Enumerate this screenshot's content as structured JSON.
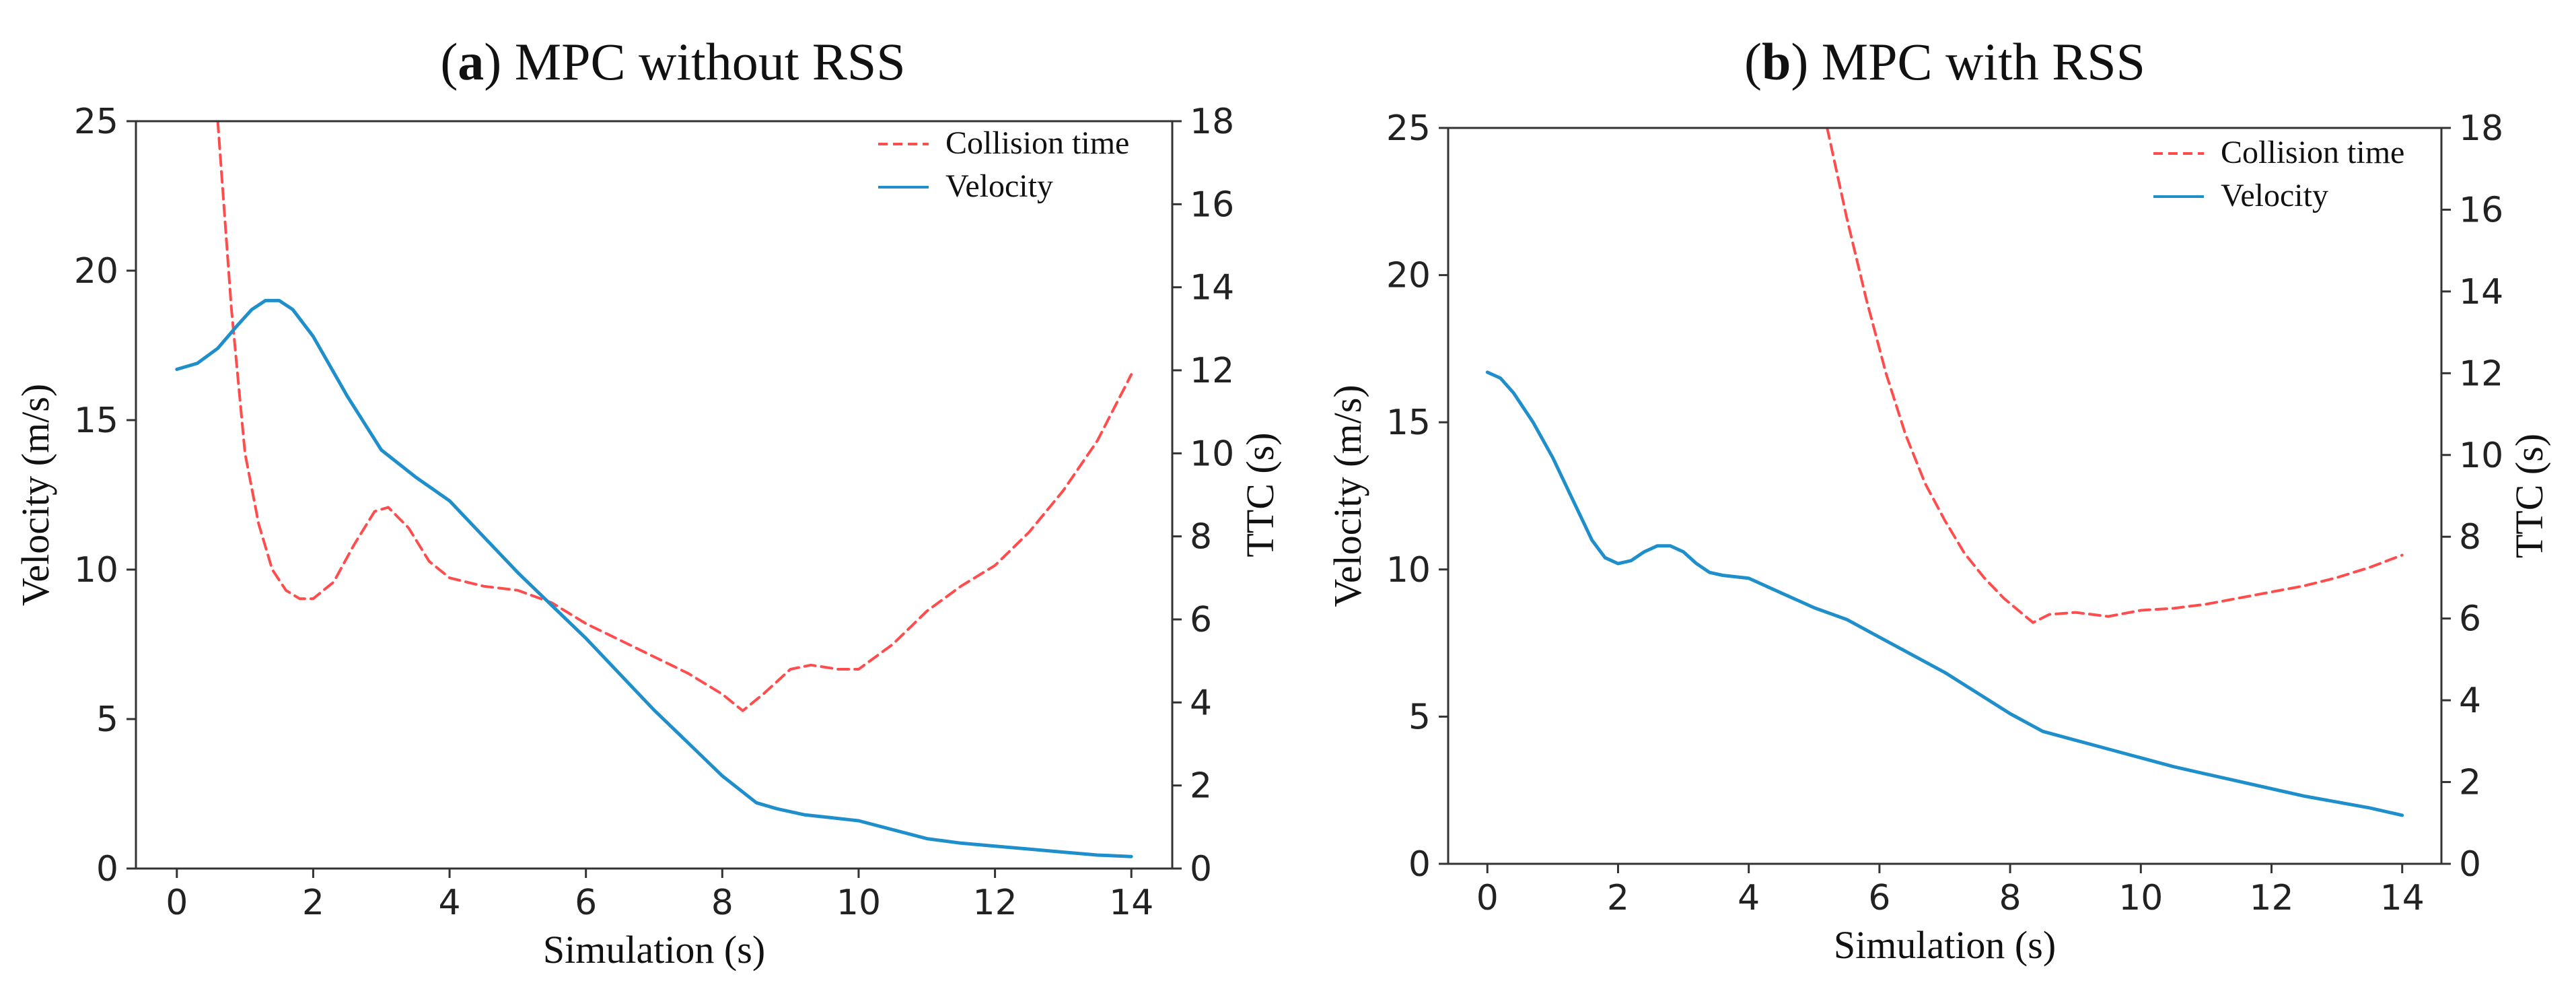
{
  "colors": {
    "ttc": "#ff4d4d",
    "velocity": "#1f8fcc"
  },
  "chart_data": [
    {
      "type": "line",
      "title_letter": "a",
      "title_rest": ") MPC without RSS",
      "title_open": "(",
      "xlabel": "Simulation (s)",
      "ylabel": "Velocity (m/s)",
      "y2label": "TTC (s)",
      "xlim": [
        -0.6,
        14.6
      ],
      "ylim": [
        0,
        25
      ],
      "y2lim": [
        0,
        18
      ],
      "xticks": [
        0,
        2,
        4,
        6,
        8,
        10,
        12,
        14
      ],
      "yticks": [
        0,
        5,
        10,
        15,
        20,
        25
      ],
      "y2ticks": [
        0,
        2,
        4,
        6,
        8,
        10,
        12,
        14,
        16,
        18
      ],
      "legend": [
        "Collision time",
        "Velocity"
      ],
      "series": [
        {
          "name": "Collision time",
          "axis": "right",
          "style": "dashed",
          "x": [
            0.6,
            0.8,
            1.0,
            1.2,
            1.4,
            1.6,
            1.8,
            2.0,
            2.3,
            2.6,
            2.9,
            3.1,
            3.4,
            3.7,
            4.0,
            4.5,
            5.0,
            5.5,
            6.0,
            6.5,
            7.0,
            7.5,
            8.0,
            8.3,
            8.6,
            9.0,
            9.3,
            9.7,
            10.0,
            10.5,
            11.0,
            11.5,
            12.0,
            12.5,
            13.0,
            13.5,
            14.0
          ],
          "y": [
            18,
            13.5,
            10.0,
            8.3,
            7.2,
            6.7,
            6.5,
            6.5,
            6.9,
            7.8,
            8.6,
            8.7,
            8.2,
            7.4,
            7.0,
            6.8,
            6.7,
            6.4,
            5.9,
            5.5,
            5.1,
            4.7,
            4.2,
            3.8,
            4.2,
            4.8,
            4.9,
            4.8,
            4.8,
            5.4,
            6.2,
            6.8,
            7.3,
            8.1,
            9.1,
            10.3,
            11.9
          ]
        },
        {
          "name": "Velocity",
          "axis": "left",
          "style": "solid",
          "x": [
            0,
            0.3,
            0.6,
            0.9,
            1.1,
            1.3,
            1.5,
            1.7,
            2.0,
            2.5,
            3.0,
            3.5,
            4.0,
            4.5,
            5.0,
            5.5,
            6.0,
            6.5,
            7.0,
            7.5,
            8.0,
            8.5,
            8.8,
            9.2,
            9.6,
            10.0,
            10.5,
            11.0,
            11.5,
            12.0,
            12.5,
            13.0,
            13.5,
            14.0
          ],
          "y": [
            16.7,
            16.9,
            17.4,
            18.2,
            18.7,
            19.0,
            19.0,
            18.7,
            17.8,
            15.8,
            14.0,
            13.1,
            12.3,
            11.1,
            9.9,
            8.8,
            7.7,
            6.5,
            5.3,
            4.2,
            3.1,
            2.2,
            2.0,
            1.8,
            1.7,
            1.6,
            1.3,
            1.0,
            0.85,
            0.75,
            0.65,
            0.55,
            0.45,
            0.4
          ]
        }
      ]
    },
    {
      "type": "line",
      "title_letter": "b",
      "title_rest": ") MPC with RSS",
      "title_open": "(",
      "xlabel": "Simulation (s)",
      "ylabel": "Velocity (m/s)",
      "y2label": "TTC (s)",
      "xlim": [
        -0.6,
        14.6
      ],
      "ylim": [
        0,
        25
      ],
      "y2lim": [
        0,
        18
      ],
      "xticks": [
        0,
        2,
        4,
        6,
        8,
        10,
        12,
        14
      ],
      "yticks": [
        0,
        5,
        10,
        15,
        20,
        25
      ],
      "y2ticks": [
        0,
        2,
        4,
        6,
        8,
        10,
        12,
        14,
        16,
        18
      ],
      "legend": [
        "Collision time",
        "Velocity"
      ],
      "series": [
        {
          "name": "Collision time",
          "axis": "right",
          "style": "dashed",
          "x": [
            5.2,
            5.5,
            5.8,
            6.1,
            6.4,
            6.7,
            7.0,
            7.3,
            7.6,
            7.9,
            8.2,
            8.35,
            8.6,
            9.0,
            9.5,
            10.0,
            10.5,
            11.0,
            11.5,
            12.0,
            12.5,
            13.0,
            13.5,
            14.0
          ],
          "y": [
            18,
            15.8,
            13.8,
            12.0,
            10.5,
            9.3,
            8.4,
            7.6,
            7.0,
            6.5,
            6.1,
            5.9,
            6.1,
            6.15,
            6.05,
            6.2,
            6.25,
            6.35,
            6.5,
            6.65,
            6.8,
            7.0,
            7.25,
            7.55
          ]
        },
        {
          "name": "Velocity",
          "axis": "left",
          "style": "solid",
          "x": [
            0,
            0.2,
            0.4,
            0.7,
            1.0,
            1.3,
            1.6,
            1.8,
            2.0,
            2.2,
            2.4,
            2.6,
            2.8,
            3.0,
            3.2,
            3.4,
            3.6,
            4.0,
            4.5,
            5.0,
            5.5,
            6.0,
            6.5,
            7.0,
            7.5,
            8.0,
            8.5,
            9.0,
            9.5,
            10.0,
            10.5,
            11.0,
            11.5,
            12.0,
            12.5,
            13.0,
            13.5,
            14.0
          ],
          "y": [
            16.7,
            16.5,
            16.0,
            15.0,
            13.8,
            12.4,
            11.0,
            10.4,
            10.2,
            10.3,
            10.6,
            10.8,
            10.8,
            10.6,
            10.2,
            9.9,
            9.8,
            9.7,
            9.2,
            8.7,
            8.3,
            7.7,
            7.1,
            6.5,
            5.8,
            5.1,
            4.5,
            4.2,
            3.9,
            3.6,
            3.3,
            3.05,
            2.8,
            2.55,
            2.3,
            2.1,
            1.9,
            1.65
          ]
        }
      ]
    }
  ]
}
